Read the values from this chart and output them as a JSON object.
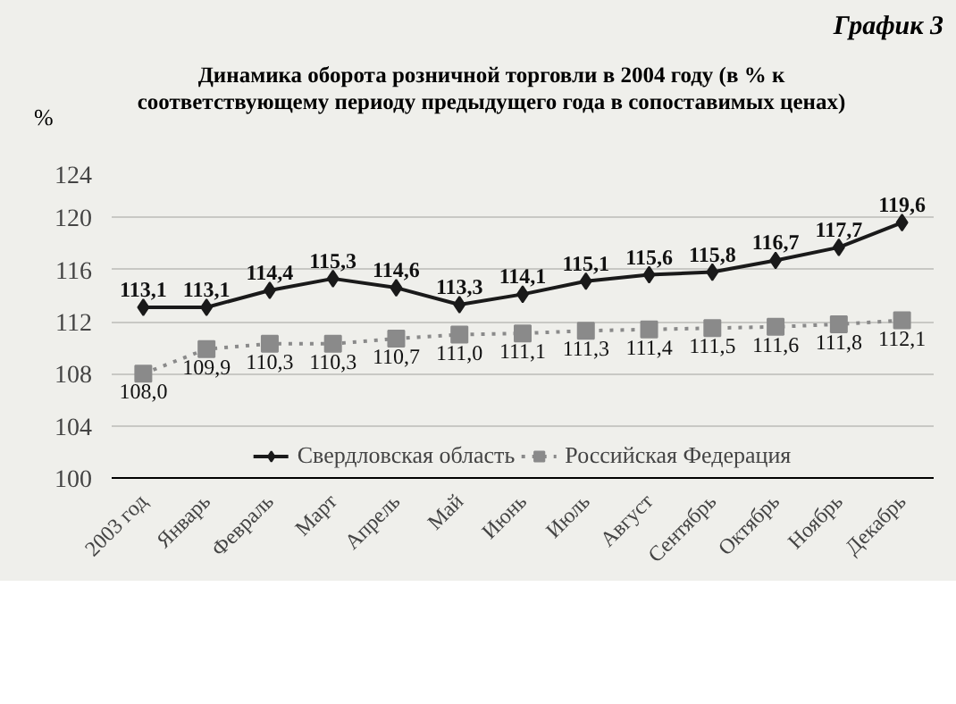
{
  "chart_data": {
    "type": "line",
    "title": "Динамика оборота розничной торговли в 2004 году (в % к соответствующему периоду предыдущего года в сопоставимых ценах)",
    "ylabel": "%",
    "annotations": [
      "График 3"
    ],
    "categories": [
      "2003 год",
      "Январь",
      "Февраль",
      "Март",
      "Апрель",
      "Май",
      "Июнь",
      "Июль",
      "Август",
      "Сентябрь",
      "Октябрь",
      "Ноябрь",
      "Декабрь"
    ],
    "series": [
      {
        "name": "Свердловская область",
        "color": "#1a1a1a",
        "marker": "diamond",
        "line_style": "solid",
        "values": [
          113.1,
          113.1,
          114.4,
          115.3,
          114.6,
          113.3,
          114.1,
          115.1,
          115.6,
          115.8,
          116.7,
          117.7,
          119.6
        ],
        "value_labels": [
          "113,1",
          "113,1",
          "114,4",
          "115,3",
          "114,6",
          "113,3",
          "114,1",
          "115,1",
          "115,6",
          "115,8",
          "116,7",
          "117,7",
          "119,6"
        ]
      },
      {
        "name": "Российская Федерация",
        "color": "#8a8a8a",
        "marker": "square",
        "line_style": "dotted",
        "values": [
          108.0,
          109.9,
          110.3,
          110.3,
          110.7,
          111.0,
          111.1,
          111.3,
          111.4,
          111.5,
          111.6,
          111.8,
          112.1
        ],
        "value_labels": [
          "108,0",
          "109,9",
          "110,3",
          "110,3",
          "110,7",
          "111,0",
          "111,1",
          "111,3",
          "111,4",
          "111,5",
          "111,6",
          "111,8",
          "112,1"
        ]
      }
    ],
    "ylim": [
      100,
      124
    ],
    "yticks": [
      100,
      104,
      108,
      112,
      116,
      120,
      124
    ],
    "grid": "y",
    "legend": "bottom"
  }
}
